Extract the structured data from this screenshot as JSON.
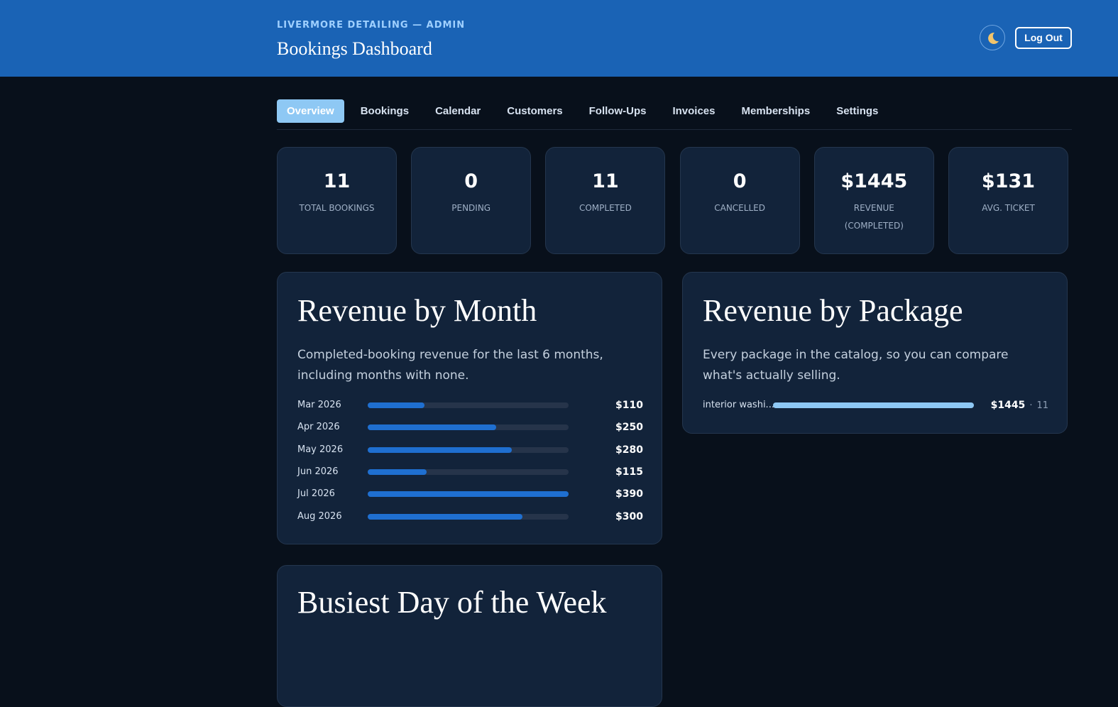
{
  "header": {
    "eyebrow": "LIVERMORE DETAILING — ADMIN",
    "title": "Bookings Dashboard",
    "logout": "Log Out"
  },
  "tabs": [
    "Overview",
    "Bookings",
    "Calendar",
    "Customers",
    "Follow-Ups",
    "Invoices",
    "Memberships",
    "Settings"
  ],
  "stats": [
    {
      "value": "11",
      "label": "TOTAL BOOKINGS"
    },
    {
      "value": "0",
      "label": "PENDING"
    },
    {
      "value": "11",
      "label": "COMPLETED"
    },
    {
      "value": "0",
      "label": "CANCELLED"
    },
    {
      "value": "$1445",
      "label": "REVENUE (COMPLETED)"
    },
    {
      "value": "$131",
      "label": "AVG. TICKET"
    }
  ],
  "revenue_by_month": {
    "title": "Revenue by Month",
    "subtitle": "Completed-booking revenue for the last 6 months, including months with none.",
    "categories": [
      "Mar 2026",
      "Apr 2026",
      "May 2026",
      "Jun 2026",
      "Jul 2026",
      "Aug 2026"
    ],
    "values": [
      110,
      250,
      280,
      115,
      390,
      300
    ],
    "value_labels": [
      "$110",
      "$250",
      "$280",
      "$115",
      "$390",
      "$300"
    ],
    "color": "#1f6fd0"
  },
  "revenue_by_package": {
    "title": "Revenue by Package",
    "subtitle": "Every package in the catalog, so you can compare what's actually selling.",
    "categories": [
      "interior washi..."
    ],
    "values": [
      1445
    ],
    "value_labels": [
      "$1445"
    ],
    "counts": [
      11
    ],
    "separator": "·",
    "color": "#8ec8f4"
  },
  "busiest_day": {
    "title": "Busiest Day of the Week"
  }
}
